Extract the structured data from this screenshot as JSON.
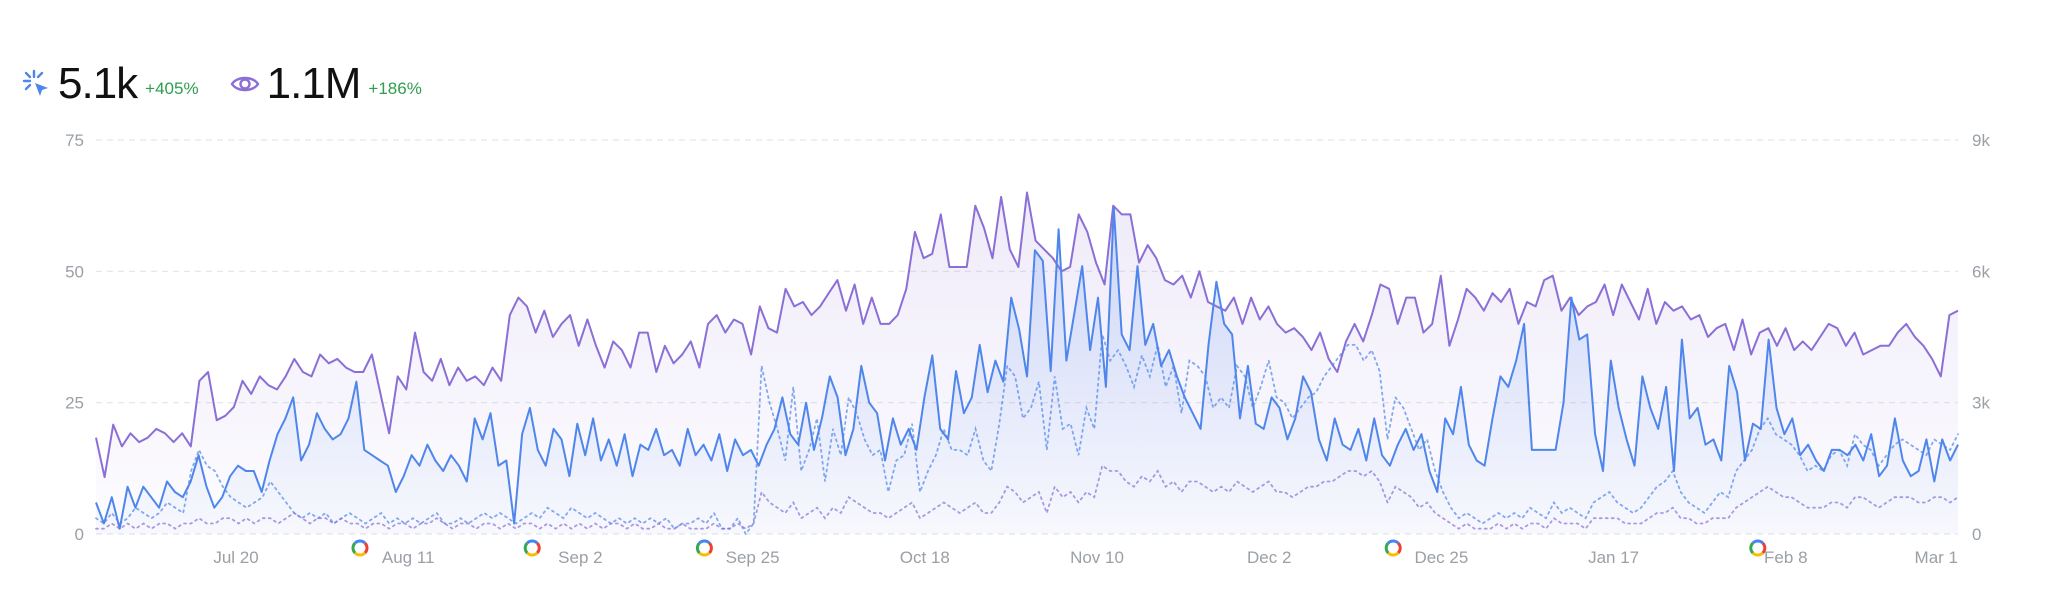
{
  "stats": [
    {
      "icon": "sparkle-click-icon",
      "value": "5.1k",
      "delta": "+405%"
    },
    {
      "icon": "eye-icon",
      "value": "1.1M",
      "delta": "+186%"
    }
  ],
  "colors": {
    "clicks": "#4f86ec",
    "impressions": "#8b6fd6",
    "grid": "#e3e5ea",
    "delta": "#2e9d4f"
  },
  "chart_data": {
    "type": "line",
    "title": "",
    "x_ticks": [
      "Jul 20",
      "Aug 11",
      "Sep 2",
      "Sep 25",
      "Oct 18",
      "Nov 10",
      "Dec 2",
      "Dec 25",
      "Jan 17",
      "Feb 8",
      "Mar 1"
    ],
    "y_left": {
      "ticks": [
        "0",
        "25",
        "50",
        "75"
      ],
      "range": [
        0,
        75
      ]
    },
    "y_right": {
      "ticks": [
        "0",
        "3k",
        "6k",
        "9k"
      ],
      "range": [
        0,
        9000
      ]
    },
    "grid": "dashed-horizontal",
    "update_markers": [
      {
        "label": "G",
        "after_tick": "Jul 20"
      },
      {
        "label": "G",
        "after_tick": "Aug 11"
      },
      {
        "label": "G",
        "after_tick": "Sep 2"
      },
      {
        "label": "G",
        "after_tick": "Dec 2"
      },
      {
        "label": "G",
        "near_tick": "Feb 8"
      }
    ],
    "series": [
      {
        "id": "impressions",
        "axis": "right",
        "style": "solid",
        "values": [
          2200,
          1300,
          2500,
          2000,
          2300,
          2100,
          2200,
          2400,
          2300,
          2100,
          2300,
          2000,
          3500,
          3700,
          2600,
          2700,
          2900,
          3500,
          3200,
          3600,
          3400,
          3300,
          3600,
          4000,
          3700,
          3600,
          4100,
          3900,
          4000,
          3800,
          3700,
          3700,
          4100,
          3200,
          2300,
          3600,
          3300,
          4600,
          3700,
          3500,
          4000,
          3400,
          3800,
          3500,
          3600,
          3400,
          3800,
          3500,
          5000,
          5400,
          5200,
          4600,
          5100,
          4500,
          4800,
          5000,
          4300,
          4900,
          4300,
          3800,
          4400,
          4200,
          3800,
          4600,
          4600,
          3700,
          4300,
          3900,
          4100,
          4400,
          3800,
          4800,
          5000,
          4600,
          4900,
          4800,
          4100,
          5200,
          4700,
          4600,
          5600,
          5200,
          5300,
          5000,
          5200,
          5500,
          5800,
          5100,
          5700,
          4800,
          5400,
          4800,
          4800,
          5000,
          5600,
          6900,
          6300,
          6400,
          7300,
          6100,
          6100,
          6100,
          7500,
          7000,
          6300,
          7700,
          6500,
          6100,
          7800,
          6700,
          6500,
          6300,
          6000,
          6100,
          7300,
          6900,
          6200,
          5700,
          7500,
          7300,
          7300,
          6200,
          6600,
          6300,
          5800,
          5700,
          5900,
          5400,
          6000,
          5300,
          5200,
          5100,
          5400,
          4800,
          5400,
          4900,
          5200,
          4800,
          4600,
          4700,
          4500,
          4200,
          4600,
          4000,
          3700,
          4400,
          4800,
          4400,
          5000,
          5700,
          5600,
          4800,
          5400,
          5400,
          4600,
          4800,
          5900,
          4300,
          4900,
          5600,
          5400,
          5100,
          5500,
          5300,
          5600,
          4800,
          5300,
          5200,
          5800,
          5900,
          5100,
          5400,
          5000,
          5200,
          5300,
          5700,
          5000,
          5700,
          5300,
          4900,
          5600,
          4800,
          5300,
          5100,
          5200,
          4900,
          5000,
          4500,
          4700,
          4800,
          4200,
          4900,
          4100,
          4600,
          4700,
          4300,
          4700,
          4200,
          4400,
          4200,
          4500,
          4800,
          4700,
          4300,
          4600,
          4100,
          4200,
          4300,
          4300,
          4600,
          4800,
          4500,
          4300,
          4000,
          3600,
          5000,
          5100
        ]
      },
      {
        "id": "clicks",
        "axis": "left",
        "style": "solid",
        "values": [
          6,
          2,
          7,
          1,
          9,
          5,
          9,
          7,
          5,
          10,
          8,
          7,
          10,
          15,
          9,
          5,
          7,
          11,
          13,
          12,
          12,
          8,
          14,
          19,
          22,
          26,
          14,
          17,
          23,
          20,
          18,
          19,
          22,
          29,
          16,
          15,
          14,
          13,
          8,
          11,
          15,
          13,
          17,
          14,
          12,
          15,
          13,
          10,
          22,
          18,
          23,
          13,
          14,
          2,
          19,
          24,
          16,
          13,
          20,
          18,
          11,
          21,
          15,
          22,
          14,
          18,
          13,
          19,
          11,
          17,
          16,
          20,
          15,
          16,
          13,
          20,
          15,
          17,
          14,
          19,
          12,
          18,
          15,
          16,
          13,
          17,
          20,
          26,
          19,
          17,
          25,
          16,
          22,
          30,
          26,
          15,
          20,
          32,
          25,
          23,
          14,
          22,
          17,
          20,
          16,
          26,
          34,
          20,
          18,
          31,
          23,
          26,
          36,
          27,
          33,
          29,
          45,
          39,
          30,
          54,
          52,
          31,
          58,
          33,
          42,
          51,
          35,
          45,
          28,
          62,
          38,
          35,
          51,
          36,
          40,
          32,
          35,
          30,
          26,
          23,
          20,
          36,
          48,
          40,
          38,
          22,
          32,
          21,
          20,
          26,
          24,
          18,
          22,
          30,
          27,
          18,
          14,
          22,
          17,
          16,
          20,
          14,
          22,
          15,
          13,
          17,
          20,
          16,
          19,
          12,
          8,
          22,
          19,
          28,
          17,
          14,
          13,
          22,
          30,
          28,
          33,
          40,
          16,
          16,
          16,
          16,
          25,
          45,
          37,
          38,
          19,
          12,
          33,
          24,
          18,
          13,
          30,
          24,
          20,
          28,
          12,
          37,
          22,
          24,
          17,
          18,
          14,
          32,
          27,
          14,
          21,
          20,
          37,
          24,
          19,
          22,
          15,
          17,
          14,
          12,
          16,
          16,
          15,
          17,
          14,
          19,
          11,
          13,
          22,
          14,
          11,
          12,
          18,
          10,
          18,
          14,
          17
        ]
      },
      {
        "id": "clicks-previous",
        "axis": "left",
        "style": "dotted",
        "values": [
          3,
          2,
          4,
          2,
          3,
          5,
          4,
          3,
          4,
          6,
          5,
          4,
          12,
          16,
          13,
          12,
          9,
          7,
          6,
          5,
          6,
          7,
          10,
          8,
          6,
          4,
          3,
          4,
          3,
          4,
          2,
          3,
          4,
          3,
          2,
          3,
          4,
          2,
          3,
          2,
          3,
          2,
          3,
          4,
          2,
          2,
          3,
          2,
          3,
          4,
          3,
          4,
          3,
          2,
          3,
          4,
          3,
          5,
          4,
          3,
          5,
          4,
          3,
          4,
          3,
          2,
          3,
          2,
          3,
          2,
          3,
          2,
          3,
          1,
          2,
          2,
          3,
          2,
          4,
          1,
          1,
          3,
          0,
          2,
          32,
          25,
          20,
          14,
          28,
          12,
          16,
          22,
          10,
          20,
          15,
          26,
          23,
          18,
          15,
          16,
          8,
          14,
          15,
          21,
          8,
          12,
          15,
          20,
          16,
          16,
          15,
          20,
          14,
          12,
          21,
          32,
          30,
          22,
          24,
          29,
          16,
          30,
          20,
          21,
          15,
          24,
          20,
          38,
          33,
          35,
          32,
          28,
          34,
          30,
          36,
          28,
          32,
          23,
          33,
          32,
          30,
          24,
          26,
          24,
          32,
          30,
          24,
          28,
          33,
          26,
          25,
          22,
          24,
          26,
          27,
          30,
          32,
          34,
          36,
          36,
          33,
          35,
          31,
          18,
          26,
          24,
          20,
          16,
          18,
          12,
          8,
          5,
          3,
          4,
          3,
          2,
          3,
          4,
          3,
          4,
          3,
          5,
          4,
          3,
          6,
          4,
          5,
          4,
          3,
          6,
          7,
          8,
          6,
          5,
          4,
          5,
          7,
          9,
          10,
          12,
          8,
          6,
          5,
          4,
          6,
          8,
          7,
          12,
          14,
          16,
          20,
          22,
          19,
          18,
          17,
          15,
          12,
          13,
          12,
          15,
          16,
          13,
          19,
          17,
          16,
          13,
          15,
          17,
          18,
          17,
          16,
          15,
          18,
          17,
          16,
          19
        ]
      },
      {
        "id": "impressions-previous",
        "axis": "left",
        "style": "dotted",
        "values": [
          1,
          1,
          2,
          1,
          2,
          1,
          2,
          1,
          2,
          2,
          1,
          2,
          2,
          3,
          2,
          2,
          3,
          3,
          2,
          3,
          2,
          3,
          3,
          2,
          3,
          4,
          3,
          2,
          3,
          3,
          2,
          3,
          2,
          2,
          1,
          2,
          2,
          1,
          2,
          2,
          1,
          2,
          2,
          3,
          2,
          1,
          2,
          2,
          1,
          2,
          2,
          1,
          2,
          1,
          2,
          2,
          1,
          2,
          1,
          2,
          1,
          2,
          1,
          2,
          1,
          2,
          2,
          1,
          2,
          1,
          1,
          2,
          1,
          1,
          2,
          1,
          1,
          1,
          2,
          1,
          1,
          2,
          1,
          2,
          8,
          6,
          5,
          4,
          6,
          3,
          4,
          5,
          3,
          5,
          4,
          7,
          6,
          5,
          4,
          4,
          3,
          4,
          5,
          6,
          3,
          4,
          5,
          6,
          5,
          4,
          5,
          6,
          4,
          4,
          6,
          9,
          8,
          6,
          7,
          8,
          4,
          9,
          7,
          8,
          6,
          8,
          7,
          13,
          12,
          12,
          10,
          9,
          11,
          10,
          12,
          9,
          10,
          8,
          10,
          10,
          9,
          8,
          9,
          8,
          10,
          9,
          8,
          9,
          10,
          8,
          8,
          7,
          8,
          9,
          9,
          10,
          10,
          11,
          12,
          12,
          11,
          12,
          10,
          6,
          9,
          8,
          7,
          5,
          6,
          4,
          3,
          2,
          1,
          2,
          1,
          1,
          1,
          2,
          1,
          2,
          1,
          2,
          2,
          1,
          3,
          2,
          2,
          2,
          1,
          3,
          3,
          3,
          3,
          2,
          2,
          2,
          3,
          4,
          4,
          5,
          3,
          3,
          2,
          2,
          3,
          3,
          3,
          5,
          6,
          7,
          8,
          9,
          8,
          7,
          7,
          6,
          5,
          5,
          5,
          6,
          6,
          5,
          7,
          7,
          6,
          5,
          6,
          7,
          7,
          7,
          6,
          6,
          7,
          7,
          6,
          7
        ]
      }
    ]
  }
}
